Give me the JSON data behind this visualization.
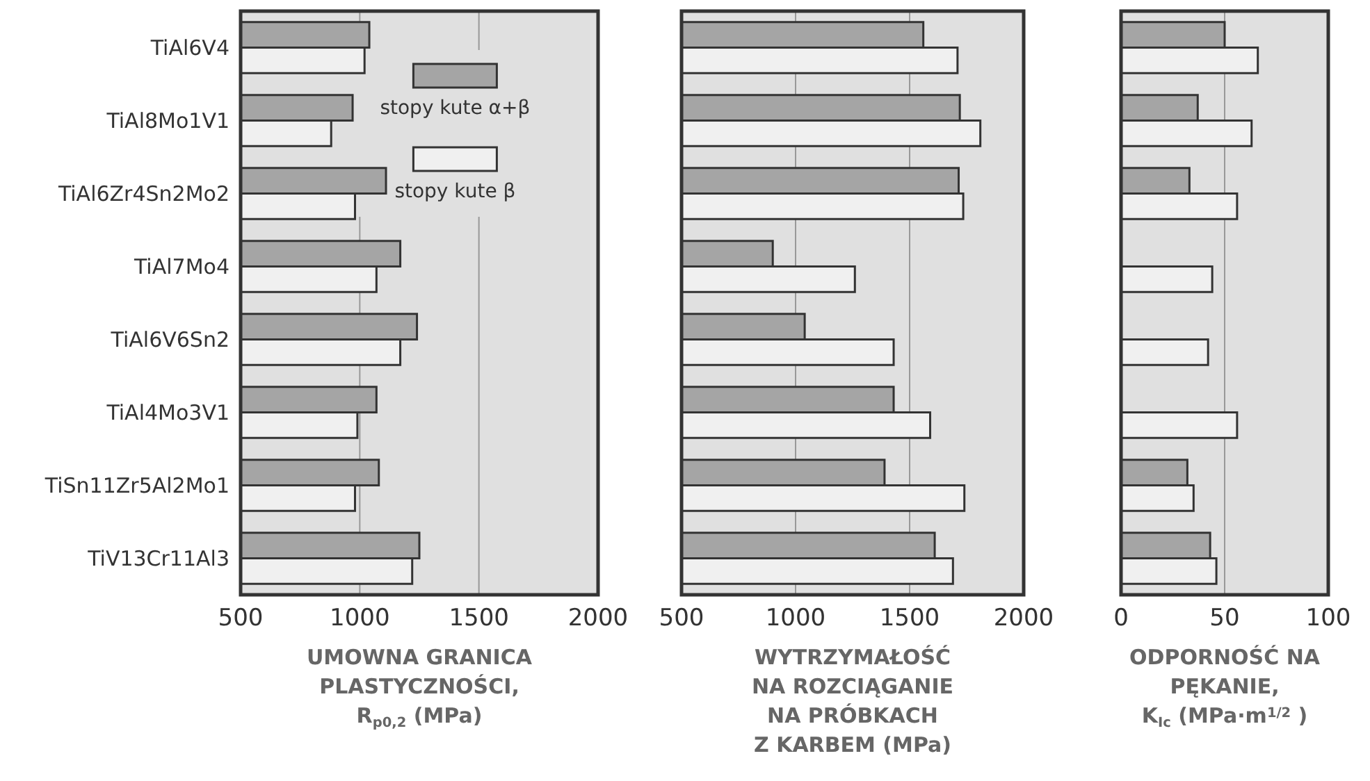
{
  "chart_data": [
    {
      "type": "bar",
      "orientation": "horizontal",
      "categories": [
        "TiAl6V4",
        "TiAl8Mo1V1",
        "TiAl6Zr4Sn2Mo2",
        "TiAl7Mo4",
        "TiAl6V6Sn2",
        "TiAl4Mo3V1",
        "TiSn11Zr5Al2Mo1",
        "TiV13Cr11Al3"
      ],
      "series": [
        {
          "name": "stopy kute α+β",
          "color": "#a5a5a5",
          "values": [
            1040,
            970,
            1110,
            1170,
            1240,
            1070,
            1080,
            1250
          ]
        },
        {
          "name": "stopy kute β",
          "color": "#f0f0f0",
          "values": [
            1020,
            880,
            980,
            1070,
            1170,
            990,
            980,
            1220
          ]
        }
      ],
      "xlim": [
        500,
        2000
      ],
      "xticks": [
        500,
        1000,
        1500,
        2000
      ],
      "xlabel": "UMOWNA GRANICA\nPLASTYCZNOŚCI,\nR$_{p0,2}$ (MPa)",
      "grid": "x",
      "legend": "top right"
    },
    {
      "type": "bar",
      "orientation": "horizontal",
      "categories": [
        null,
        null,
        null,
        null,
        null,
        null,
        null,
        null
      ],
      "series": [
        {
          "color": "#a5a5a5",
          "values": [
            1560,
            1720,
            1715,
            900,
            1040,
            1430,
            1390,
            1610
          ]
        },
        {
          "color": "#f0f0f0",
          "values": [
            1710,
            1810,
            1735,
            1260,
            1430,
            1590,
            1740,
            1690
          ]
        }
      ],
      "xlim": [
        500,
        2000
      ],
      "xticks": [
        500,
        1000,
        1500,
        2000
      ],
      "xlabel": "WYTRZYMAŁOŚĆ\nNA ROZCIĄGANIE\nNA PRÓBKACH\nZ KARBEM (MPa)",
      "grid": "x",
      "tick_labels": "x"
    },
    {
      "type": "bar",
      "orientation": "horizontal",
      "categories": [
        null,
        null,
        null,
        null,
        null,
        null,
        null,
        null
      ],
      "series": [
        {
          "color": "#a5a5a5",
          "values": [
            50,
            37,
            33,
            null,
            null,
            null,
            32,
            43
          ]
        },
        {
          "color": "#f0f0f0",
          "values": [
            66,
            63,
            56,
            44,
            42,
            56,
            35,
            46
          ]
        }
      ],
      "xlim": [
        0,
        100
      ],
      "xticks": [
        0,
        50,
        100
      ],
      "xlabel": "ODPORNOŚĆ NA\nPĘKANIE,\nK$_{Ic}$ (MPa·m$^{1/2}$ )",
      "grid": "x",
      "tick_labels": "x"
    }
  ]
}
